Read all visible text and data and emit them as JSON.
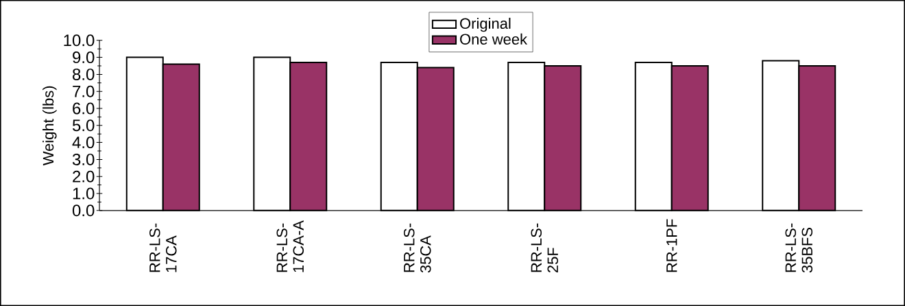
{
  "chart_data": {
    "type": "bar",
    "ylabel": "Weight (lbs)",
    "categories": [
      "RR-LS-17CA",
      "RR-LS-17CA-A",
      "RR-LS-35CA",
      "RR-LS-25F",
      "RR-1PF",
      "RR-LS-35BFS"
    ],
    "series": [
      {
        "name": "Original",
        "color": "#ffffff",
        "values": [
          9.0,
          9.0,
          8.7,
          8.7,
          8.7,
          8.8
        ]
      },
      {
        "name": "One week",
        "color": "#993366",
        "values": [
          8.6,
          8.7,
          8.4,
          8.5,
          8.5,
          8.5
        ]
      }
    ],
    "ylim": [
      0,
      10
    ],
    "yticks": [
      {
        "value": 0,
        "label": "0.0"
      },
      {
        "value": 1,
        "label": "1.0"
      },
      {
        "value": 2,
        "label": "2.0"
      },
      {
        "value": 3,
        "label": "3.0"
      },
      {
        "value": 4,
        "label": "4.0"
      },
      {
        "value": 5,
        "label": "5.0"
      },
      {
        "value": 6,
        "label": "6.0"
      },
      {
        "value": 7,
        "label": "7.0"
      },
      {
        "value": 8,
        "label": "8.0"
      },
      {
        "value": 9,
        "label": "9.0"
      },
      {
        "value": 10,
        "label": "10.0"
      }
    ],
    "legend": "top"
  }
}
